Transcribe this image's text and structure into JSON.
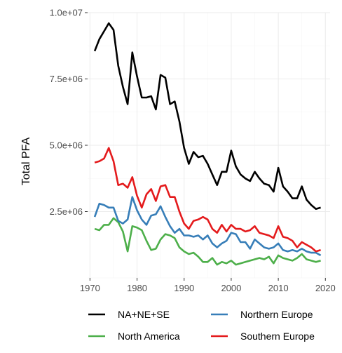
{
  "chart_data": {
    "type": "line",
    "title": "",
    "xlabel": "",
    "ylabel": "Total PFA",
    "xlim": [
      1969.5,
      2021
    ],
    "ylim": [
      0,
      10000000
    ],
    "x_ticks": [
      1970,
      1980,
      1990,
      2000,
      2010,
      2020
    ],
    "x_tick_labels": [
      "1970",
      "1980",
      "1990",
      "2000",
      "2010",
      "2020"
    ],
    "y_ticks": [
      2500000,
      5000000,
      7500000,
      10000000
    ],
    "y_tick_labels": [
      "2.5e+06",
      "5.0e+06",
      "7.5e+06",
      "1.0e+07"
    ],
    "grid": true,
    "legend_position": "bottom",
    "x": [
      1971,
      1972,
      1973,
      1974,
      1975,
      1976,
      1977,
      1978,
      1979,
      1980,
      1981,
      1982,
      1983,
      1984,
      1985,
      1986,
      1987,
      1988,
      1989,
      1990,
      1991,
      1992,
      1993,
      1994,
      1995,
      1996,
      1997,
      1998,
      1999,
      2000,
      2001,
      2002,
      2003,
      2004,
      2005,
      2006,
      2007,
      2008,
      2009,
      2010,
      2011,
      2012,
      2013,
      2014,
      2015,
      2016,
      2017,
      2018,
      2019
    ],
    "series": [
      {
        "name": "NA+NE+SE",
        "color": "#000000",
        "values": [
          8550000,
          9000000,
          9300000,
          9600000,
          9350000,
          8000000,
          7200000,
          6550000,
          8500000,
          7600000,
          6800000,
          6800000,
          6850000,
          6350000,
          7650000,
          7550000,
          6550000,
          6650000,
          5900000,
          4900000,
          4300000,
          4750000,
          4550000,
          4600000,
          4300000,
          3900000,
          3500000,
          4000000,
          4000000,
          4800000,
          4200000,
          3900000,
          3750000,
          3650000,
          4000000,
          3750000,
          3550000,
          3500000,
          3250000,
          4150000,
          3450000,
          3250000,
          3000000,
          3000000,
          3450000,
          2950000,
          2750000,
          2600000,
          2650000
        ]
      },
      {
        "name": "Northern Europe",
        "color": "#377eb8",
        "values": [
          2300000,
          2800000,
          2750000,
          2650000,
          2650000,
          2150000,
          2050000,
          2200000,
          3050000,
          2550000,
          2200000,
          2000000,
          2350000,
          2400000,
          2700000,
          2300000,
          1950000,
          1700000,
          1850000,
          1600000,
          1600000,
          1550000,
          1600000,
          1450000,
          1600000,
          1300000,
          1150000,
          1300000,
          1400000,
          1700000,
          1650000,
          1350000,
          1350000,
          1100000,
          1450000,
          1300000,
          1150000,
          1100000,
          1150000,
          1300000,
          1050000,
          1000000,
          1050000,
          1000000,
          1100000,
          1000000,
          950000,
          950000,
          850000
        ]
      },
      {
        "name": "North America",
        "color": "#4daf4a",
        "values": [
          1850000,
          1800000,
          2000000,
          2000000,
          2250000,
          2100000,
          1750000,
          1000000,
          1950000,
          1900000,
          1800000,
          1400000,
          1050000,
          1100000,
          1450000,
          1650000,
          1600000,
          1500000,
          1150000,
          1000000,
          900000,
          950000,
          800000,
          600000,
          600000,
          750000,
          500000,
          600000,
          550000,
          650000,
          500000,
          550000,
          600000,
          650000,
          700000,
          750000,
          700000,
          800000,
          550000,
          850000,
          750000,
          700000,
          650000,
          750000,
          900000,
          700000,
          650000,
          600000,
          650000
        ]
      },
      {
        "name": "Southern Europe",
        "color": "#e41a1c",
        "values": [
          4350000,
          4400000,
          4500000,
          4900000,
          4400000,
          3500000,
          3550000,
          3400000,
          3800000,
          3100000,
          2650000,
          3150000,
          3350000,
          2900000,
          3450000,
          3500000,
          3050000,
          3050000,
          2500000,
          2050000,
          1850000,
          2150000,
          2200000,
          2300000,
          2200000,
          1850000,
          1700000,
          2000000,
          1750000,
          2000000,
          1850000,
          1850000,
          1750000,
          1800000,
          1950000,
          1700000,
          1650000,
          1600000,
          1500000,
          1950000,
          1550000,
          1500000,
          1400000,
          1150000,
          1350000,
          1250000,
          1150000,
          1000000,
          1050000
        ]
      }
    ],
    "legend_order": [
      0,
      1,
      2,
      3
    ]
  }
}
